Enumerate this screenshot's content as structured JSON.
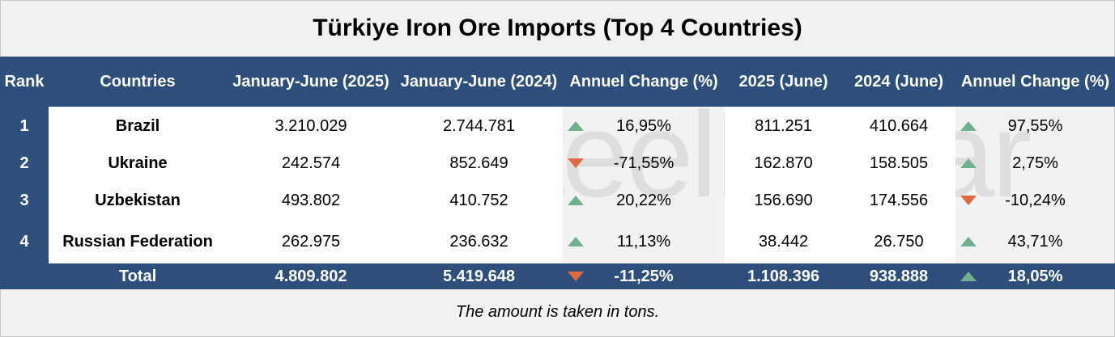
{
  "chart_data": {
    "type": "table",
    "title": "Türkiye Iron Ore Imports (Top 4 Countries)",
    "headers": [
      "Rank",
      "Countries",
      "January-June (2025)",
      "January-June (2024)",
      "Annuel Change (%)",
      "2025 (June)",
      "2024 (June)",
      "Annuel Change (%)"
    ],
    "rows": [
      {
        "rank": "1",
        "country": "Brazil",
        "h1_2025": "3.210.029",
        "h1_2024": "2.744.781",
        "h1_change": "16,95%",
        "h1_dir": "up",
        "jun_2025": "811.251",
        "jun_2024": "410.664",
        "jun_change": "97,55%",
        "jun_dir": "up"
      },
      {
        "rank": "2",
        "country": "Ukraine",
        "h1_2025": "242.574",
        "h1_2024": "852.649",
        "h1_change": "-71,55%",
        "h1_dir": "down",
        "jun_2025": "162.870",
        "jun_2024": "158.505",
        "jun_change": "2,75%",
        "jun_dir": "up"
      },
      {
        "rank": "3",
        "country": "Uzbekistan",
        "h1_2025": "493.802",
        "h1_2024": "410.752",
        "h1_change": "20,22%",
        "h1_dir": "up",
        "jun_2025": "156.690",
        "jun_2024": "174.556",
        "jun_change": "-10,24%",
        "jun_dir": "down"
      },
      {
        "rank": "4",
        "country": "Russian Federation",
        "h1_2025": "262.975",
        "h1_2024": "236.632",
        "h1_change": "11,13%",
        "h1_dir": "up",
        "jun_2025": "38.442",
        "jun_2024": "26.750",
        "jun_change": "43,71%",
        "jun_dir": "up"
      }
    ],
    "total": {
      "label": "Total",
      "h1_2025": "4.809.802",
      "h1_2024": "5.419.648",
      "h1_change": "-11,25%",
      "h1_dir": "down",
      "jun_2025": "1.108.396",
      "jun_2024": "938.888",
      "jun_change": "18,05%",
      "jun_dir": "up"
    },
    "note": "The amount is taken in tons.",
    "watermark": "SteelRadar"
  },
  "colors": {
    "header_bg": "#2e4f7c",
    "up_arrow": "#6fb08e",
    "down_arrow": "#e06843"
  }
}
